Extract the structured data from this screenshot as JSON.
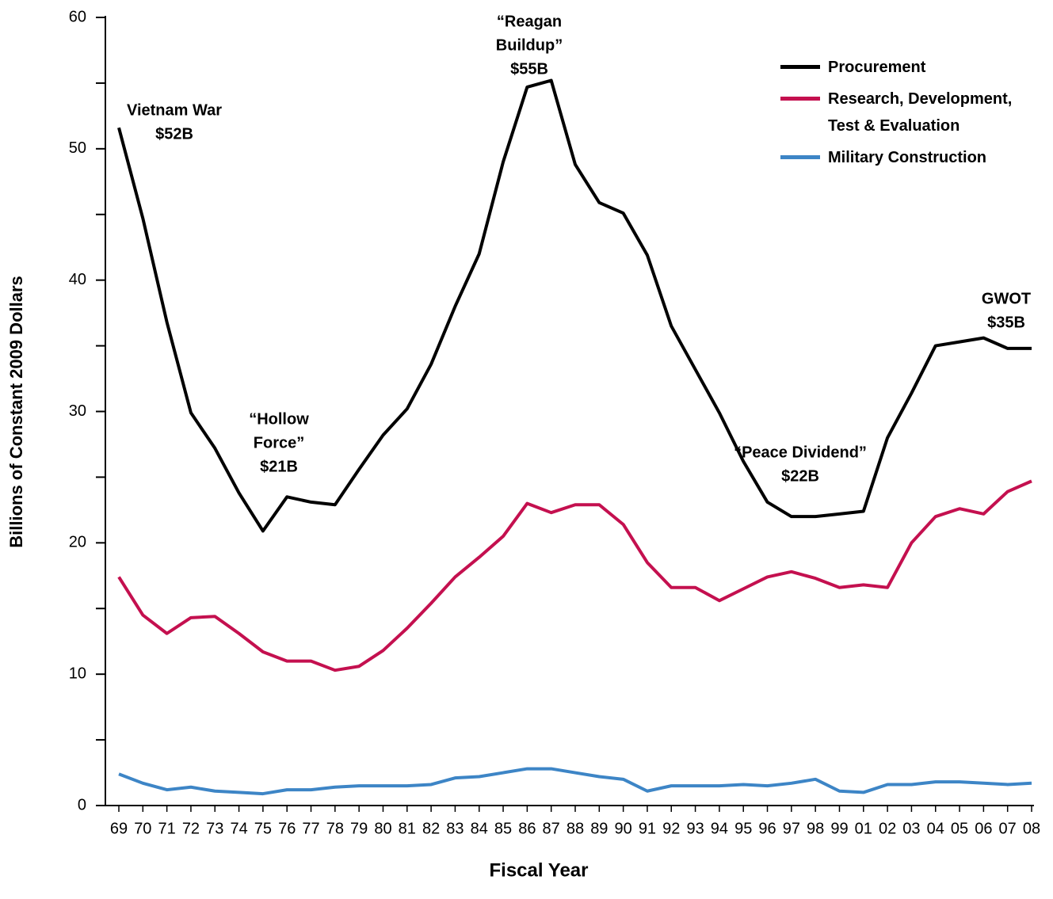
{
  "chart_data": {
    "type": "line",
    "x_label": "Fiscal Year",
    "y_label": "Billions of Constant 2009 Dollars",
    "categories": [
      "69",
      "70",
      "71",
      "72",
      "73",
      "74",
      "75",
      "76",
      "77",
      "78",
      "79",
      "80",
      "81",
      "82",
      "83",
      "84",
      "85",
      "86",
      "87",
      "88",
      "89",
      "90",
      "91",
      "92",
      "93",
      "94",
      "95",
      "96",
      "97",
      "98",
      "99",
      "01",
      "02",
      "03",
      "04",
      "05",
      "06",
      "07",
      "08"
    ],
    "series": [
      {
        "name": "Procurement",
        "color": "#000000",
        "values": [
          51.6,
          44.7,
          36.8,
          29.9,
          27.2,
          23.8,
          20.9,
          23.5,
          23.1,
          22.9,
          25.6,
          28.2,
          30.2,
          33.6,
          38,
          42,
          49,
          54.7,
          55.2,
          48.8,
          45.9,
          45.1,
          41.9,
          36.5,
          33.2,
          29.9,
          26.2,
          23.1,
          22,
          22,
          22.2,
          22.4,
          28,
          31.4,
          35,
          35.3,
          35.6,
          34.8,
          34.8
        ]
      },
      {
        "name": "Research, Development, Test & Evaluation",
        "color": "#c4104f",
        "values": [
          17.4,
          14.5,
          13.1,
          14.3,
          14.4,
          13.1,
          11.7,
          11.0,
          11.0,
          10.3,
          10.6,
          11.8,
          13.5,
          15.4,
          17.4,
          18.9,
          20.5,
          23.0,
          22.3,
          22.9,
          22.9,
          21.4,
          18.5,
          16.6,
          16.6,
          15.6,
          16.5,
          17.4,
          17.8,
          17.3,
          16.6,
          16.8,
          16.6,
          20.0,
          22.0,
          22.6,
          22.2,
          23.9,
          24.7
        ]
      },
      {
        "name": "Military Construction",
        "color": "#3d85c6",
        "values": [
          2.4,
          1.7,
          1.2,
          1.4,
          1.1,
          1.0,
          0.9,
          1.2,
          1.2,
          1.4,
          1.5,
          1.5,
          1.5,
          1.6,
          2.1,
          2.2,
          2.5,
          2.8,
          2.8,
          2.5,
          2.2,
          2.0,
          1.1,
          1.5,
          1.5,
          1.5,
          1.6,
          1.5,
          1.7,
          2.0,
          1.1,
          1.0,
          1.6,
          1.6,
          1.8,
          1.8,
          1.7,
          1.6,
          1.7
        ]
      }
    ],
    "ylim": [
      0,
      60
    ],
    "yticks": [
      0,
      10,
      20,
      30,
      40,
      50,
      60
    ],
    "yminor_ticks": [
      5,
      15,
      25,
      35,
      45,
      55
    ],
    "annotations": [
      [
        "Vietnam War",
        "$52B"
      ],
      [
        "“Hollow",
        "Force”",
        "$21B"
      ],
      [
        "“Reagan",
        "Buildup”",
        "$55B"
      ],
      [
        "“Peace Dividend”",
        "$22B"
      ],
      [
        "GWOT",
        "$35B"
      ]
    ],
    "legend": "upper right"
  }
}
